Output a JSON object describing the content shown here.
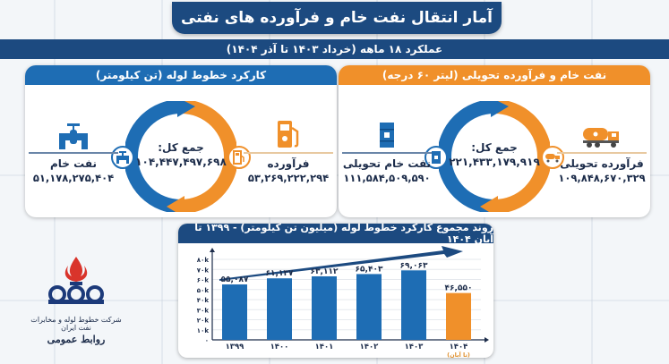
{
  "header": {
    "title": "آمار انتقال نفت خام و فرآورده های نفتی",
    "subtitle": "عملکرد ۱۸ ماهه (خرداد ۱۴۰۳ تا آذر ۱۴۰۴)"
  },
  "pipeline_panel": {
    "title": "کارکرد خطوط لوله (تن کیلومتر)",
    "total_label": "جمع کل:",
    "total_value": "۱۰۴,۴۴۷,۴۹۷,۶۹۸",
    "crude": {
      "label": "نفت خام",
      "value": "۵۱,۱۷۸,۲۷۵,۴۰۴",
      "icon": "pipe-valve-icon"
    },
    "product": {
      "label": "فرآورده",
      "value": "۵۳,۲۶۹,۲۲۲,۲۹۴",
      "icon": "fuel-pump-icon"
    }
  },
  "delivery_panel": {
    "title": "نفت خام و فرآورده تحویلی (لیتر ۶۰ درجه)",
    "total_label": "جمع کل:",
    "total_value": "۲۲۱,۴۳۳,۱۷۹,۹۱۹",
    "crude": {
      "label": "نفت خام تحویلی",
      "value": "۱۱۱,۵۸۴,۵۰۹,۵۹۰",
      "icon": "oil-barrel-icon"
    },
    "product": {
      "label": "فرآورده تحویلی",
      "value": "۱۰۹,۸۴۸,۶۷۰,۳۲۹",
      "icon": "tanker-truck-icon"
    }
  },
  "logo": {
    "company": "شرکت خطوط لوله و مخابرات نفت ایران",
    "department": "روابط عمومی"
  },
  "colors": {
    "navy": "#1c4a80",
    "blue": "#1e6db4",
    "orange": "#f0902a"
  },
  "chart_data": {
    "type": "bar",
    "title": "روند مجموع کارکرد خطوط لوله (میلیون تن کیلومتر) - ۱۳۹۹ تا آبان ۱۴۰۴",
    "categories": [
      "۱۳۹۹",
      "۱۴۰۰",
      "۱۴۰۱",
      "۱۴۰۲",
      "۱۴۰۳",
      "۱۴۰۴"
    ],
    "category_notes": [
      "",
      "",
      "",
      "",
      "",
      "(تا آبان)"
    ],
    "values": [
      55087,
      61137,
      63112,
      65403,
      69063,
      46550
    ],
    "value_labels": [
      "۵۵,۰۸۷",
      "۶۱,۱۳۷",
      "۶۳,۱۱۲",
      "۶۵,۴۰۳",
      "۶۹,۰۶۳",
      "۴۶,۵۵۰"
    ],
    "bar_colors": [
      "#1e6db4",
      "#1e6db4",
      "#1e6db4",
      "#1e6db4",
      "#1e6db4",
      "#f0902a"
    ],
    "ytick_labels": [
      "۰",
      "۱۰k",
      "۲۰k",
      "۳۰k",
      "۴۰k",
      "۵۰k",
      "۶۰k",
      "۷۰k",
      "۸۰k"
    ],
    "ylim": [
      0,
      80000
    ],
    "xlabel": "",
    "ylabel": "",
    "grid": true,
    "legend": "none",
    "annotation": "upward trend arrow"
  }
}
